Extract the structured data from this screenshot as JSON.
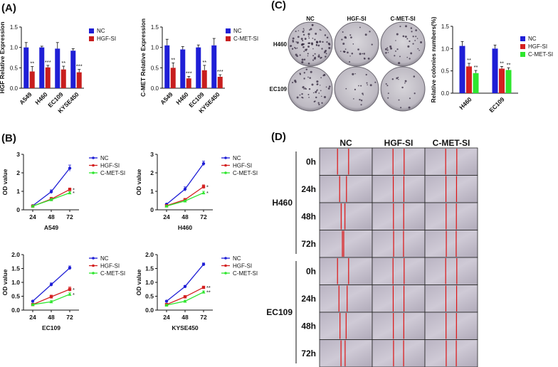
{
  "panels": {
    "A": "(A)",
    "B": "(B)",
    "C": "(C)",
    "D": "(D)"
  },
  "colors": {
    "nc": "#1f1fd6",
    "hgf": "#d42020",
    "cmet": "#2ee62e",
    "cmetBar": "#c81e1e"
  },
  "chart_data": [
    {
      "id": "A1",
      "type": "bar",
      "ylabel": "HGF Relative Expression",
      "categories": [
        "A549",
        "H460",
        "EC109",
        "KYSE450"
      ],
      "ylim": [
        0,
        1.5
      ],
      "yticks": [
        "0.0",
        "0.5",
        "1.0",
        "1.5"
      ],
      "series": [
        {
          "name": "NC",
          "values": [
            1.0,
            1.0,
            0.97,
            0.92
          ],
          "errors": [
            0.12,
            0.03,
            0.15,
            0.05
          ]
        },
        {
          "name": "HGF-SI",
          "values": [
            0.41,
            0.51,
            0.46,
            0.39
          ],
          "errors": [
            0.12,
            0.05,
            0.08,
            0.07
          ]
        }
      ],
      "sig": [
        "**",
        "***",
        "**",
        "***"
      ],
      "legend": "right"
    },
    {
      "id": "A2",
      "type": "bar",
      "ylabel": "C-MET Relative Expression",
      "categories": [
        "A549",
        "H460",
        "EC109",
        "KYSE450"
      ],
      "ylim": [
        0,
        1.5
      ],
      "yticks": [
        "0.0",
        "0.5",
        "1.0",
        "1.5"
      ],
      "series": [
        {
          "name": "NC",
          "values": [
            1.05,
            0.95,
            1.0,
            1.05
          ],
          "errors": [
            0.15,
            0.07,
            0.06,
            0.17
          ]
        },
        {
          "name": "C-MET-SI",
          "values": [
            0.5,
            0.24,
            0.44,
            0.28
          ],
          "errors": [
            0.12,
            0.05,
            0.12,
            0.05
          ]
        }
      ],
      "sig": [
        "**",
        "***",
        "**",
        "***"
      ],
      "legend": "right"
    },
    {
      "id": "C",
      "type": "bar",
      "ylabel": "Relative colonies numbers(%)",
      "categories": [
        "H460",
        "EC109"
      ],
      "ylim": [
        0,
        1.5
      ],
      "yticks": [
        "0.0",
        "0.5",
        "1.0",
        "1.5"
      ],
      "series": [
        {
          "name": "NC",
          "values": [
            1.06,
            1.0
          ],
          "errors": [
            0.1,
            0.08
          ]
        },
        {
          "name": "HGF-SI",
          "values": [
            0.6,
            0.55
          ],
          "errors": [
            0.07,
            0.05
          ]
        },
        {
          "name": "C-MET-SI",
          "values": [
            0.45,
            0.52
          ],
          "errors": [
            0.06,
            0.05
          ]
        }
      ],
      "sig": [
        [
          "**",
          "**"
        ],
        [
          "**",
          "**"
        ]
      ],
      "legend": "right"
    },
    {
      "id": "B1",
      "type": "line",
      "xlabel": "A549",
      "ylabel": "OD value",
      "x": [
        24,
        48,
        72
      ],
      "ylim": [
        0,
        3
      ],
      "yticks": [
        "0",
        "1",
        "2",
        "3"
      ],
      "series": [
        {
          "name": "NC",
          "values": [
            0.22,
            0.98,
            2.25
          ],
          "errors": [
            0.03,
            0.1,
            0.17
          ]
        },
        {
          "name": "HGF-SI",
          "values": [
            0.2,
            0.58,
            1.1
          ],
          "errors": [
            0.03,
            0.1,
            0.08
          ]
        },
        {
          "name": "C-MET-SI",
          "values": [
            0.2,
            0.55,
            0.92
          ],
          "errors": [
            0.03,
            0.06,
            0.06
          ]
        }
      ],
      "sig": [
        "*",
        "*"
      ]
    },
    {
      "id": "B2",
      "type": "line",
      "xlabel": "H460",
      "ylabel": "OD value",
      "x": [
        24,
        48,
        72
      ],
      "ylim": [
        0,
        3
      ],
      "yticks": [
        "0",
        "1",
        "2",
        "3"
      ],
      "series": [
        {
          "name": "NC",
          "values": [
            0.3,
            1.12,
            2.5
          ],
          "errors": [
            0.03,
            0.12,
            0.13
          ]
        },
        {
          "name": "HGF-SI",
          "values": [
            0.22,
            0.55,
            1.25
          ],
          "errors": [
            0.03,
            0.06,
            0.1
          ]
        },
        {
          "name": "C-MET-SI",
          "values": [
            0.2,
            0.48,
            0.92
          ],
          "errors": [
            0.03,
            0.05,
            0.08
          ]
        }
      ],
      "sig": [
        "*",
        "*"
      ]
    },
    {
      "id": "B3",
      "type": "line",
      "xlabel": "EC109",
      "ylabel": "OD value",
      "x": [
        24,
        48,
        72
      ],
      "ylim": [
        0,
        2.0
      ],
      "yticks": [
        "0.0",
        "0.5",
        "1.0",
        "1.5",
        "2.0"
      ],
      "series": [
        {
          "name": "NC",
          "values": [
            0.32,
            0.92,
            1.52
          ],
          "errors": [
            0.03,
            0.06,
            0.07
          ]
        },
        {
          "name": "HGF-SI",
          "values": [
            0.2,
            0.48,
            0.75
          ],
          "errors": [
            0.03,
            0.06,
            0.08
          ]
        },
        {
          "name": "C-MET-SI",
          "values": [
            0.2,
            0.3,
            0.57
          ],
          "errors": [
            0.02,
            0.04,
            0.05
          ]
        }
      ],
      "sig": [
        "*",
        "*"
      ]
    },
    {
      "id": "B4",
      "type": "line",
      "xlabel": "KYSE450",
      "ylabel": "OD value",
      "x": [
        24,
        48,
        72
      ],
      "ylim": [
        0,
        2.0
      ],
      "yticks": [
        "0.0",
        "0.5",
        "1.0",
        "1.5",
        "2.0"
      ],
      "series": [
        {
          "name": "NC",
          "values": [
            0.32,
            0.85,
            1.65
          ],
          "errors": [
            0.03,
            0.04,
            0.05
          ]
        },
        {
          "name": "HGF-SI",
          "values": [
            0.2,
            0.48,
            0.82
          ],
          "errors": [
            0.02,
            0.04,
            0.04
          ]
        },
        {
          "name": "C-MET-SI",
          "values": [
            0.18,
            0.32,
            0.65
          ],
          "errors": [
            0.02,
            0.03,
            0.04
          ]
        }
      ],
      "sig": [
        "**",
        "**"
      ]
    }
  ],
  "colony": {
    "columns": [
      "NC",
      "HGF-SI",
      "C-MET-SI"
    ],
    "rows": [
      "H460",
      "EC109"
    ],
    "density": [
      [
        0.6,
        0.2,
        0.25
      ],
      [
        0.35,
        0.12,
        0.12
      ]
    ]
  },
  "wound": {
    "columns": [
      "NC",
      "HGF-SI",
      "C-MET-SI"
    ],
    "groups": [
      "H460",
      "EC109"
    ],
    "times": [
      "0h",
      "24h",
      "48h",
      "72h"
    ],
    "gap": [
      [
        0.65,
        0.4,
        0.22,
        0.08
      ],
      [
        0.65,
        0.48,
        0.36,
        0.24
      ]
    ],
    "gap_si": [
      [
        0.65,
        0.62,
        0.6,
        0.58
      ],
      [
        0.65,
        0.63,
        0.61,
        0.59
      ]
    ]
  }
}
